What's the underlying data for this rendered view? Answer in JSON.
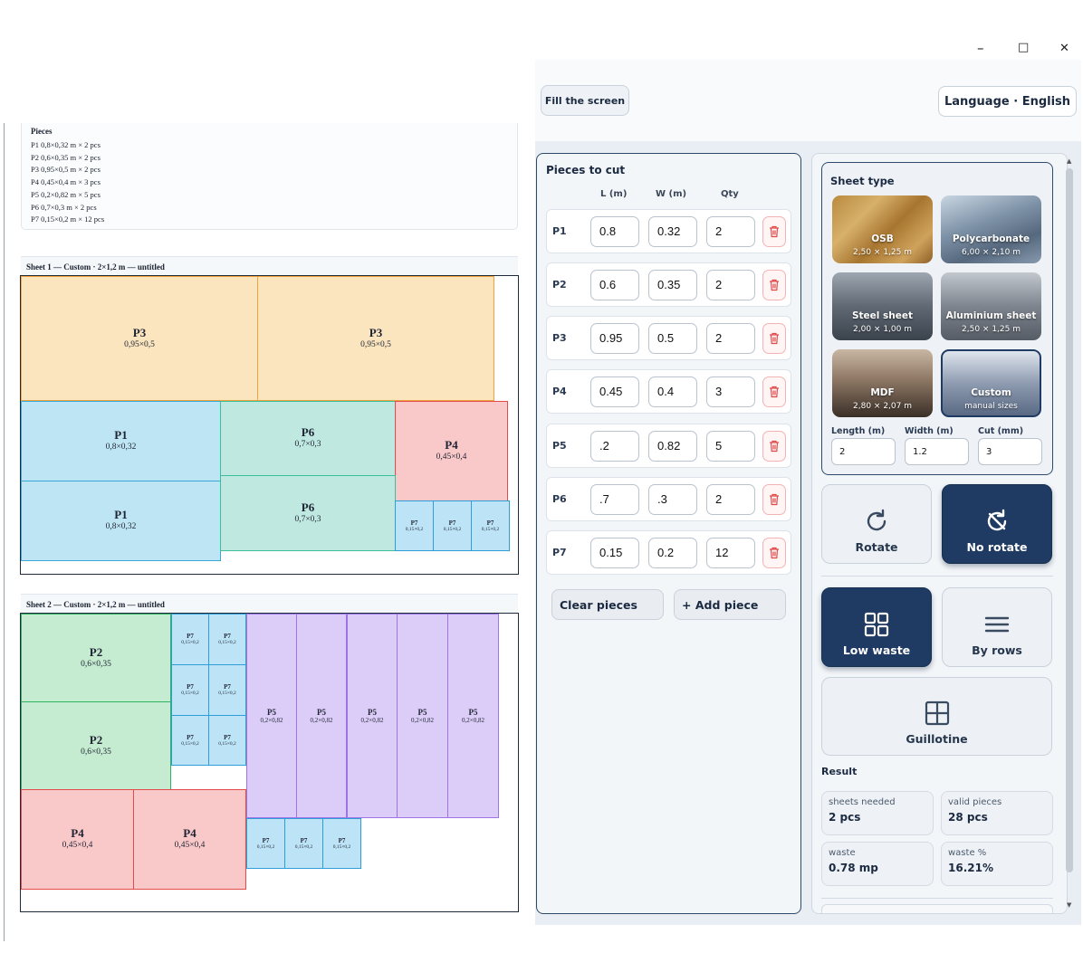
{
  "window": {
    "minimize_glyph": "–",
    "maximize_glyph": "□",
    "close_glyph": "✕"
  },
  "top_bar": {
    "fill_screen_label": "Fill the screen",
    "language_label": "Language · English"
  },
  "report": {
    "pieces_title": "Pieces",
    "pieces_lines": [
      "P1 0,8×0,32 m × 2 pcs",
      "P2 0,6×0,35 m × 2 pcs",
      "P3 0,95×0,5 m × 2 pcs",
      "P4 0,45×0,4 m × 3 pcs",
      "P5 0,2×0,82 m × 5 pcs",
      "P6 0,7×0,3 m × 2 pcs",
      "P7 0,15×0,2 m × 12 pcs"
    ],
    "sheets": [
      {
        "title": "Sheet 1 — Custom · 2×1,2 m — untitled",
        "pieces": [
          {
            "id": "P3",
            "dims": "0,95×0,5"
          },
          {
            "id": "P3",
            "dims": "0,95×0,5"
          },
          {
            "id": "P1",
            "dims": "0,8×0,32"
          },
          {
            "id": "P6",
            "dims": "0,7×0,3"
          },
          {
            "id": "P4",
            "dims": "0,45×0,4"
          },
          {
            "id": "P1",
            "dims": "0,8×0,32"
          },
          {
            "id": "P6",
            "dims": "0,7×0,3"
          },
          {
            "id": "P7",
            "dims": "0,15×0,2"
          },
          {
            "id": "P7",
            "dims": "0,15×0,2"
          },
          {
            "id": "P7",
            "dims": "0,15×0,2"
          }
        ]
      },
      {
        "title": "Sheet 2 — Custom · 2×1,2 m — untitled",
        "pieces": [
          {
            "id": "P2",
            "dims": "0,6×0,35"
          },
          {
            "id": "P2",
            "dims": "0,6×0,35"
          },
          {
            "id": "P7",
            "dims": "0,15×0,2"
          },
          {
            "id": "P7",
            "dims": "0,15×0,2"
          },
          {
            "id": "P7",
            "dims": "0,15×0,2"
          },
          {
            "id": "P7",
            "dims": "0,15×0,2"
          },
          {
            "id": "P7",
            "dims": "0,15×0,2"
          },
          {
            "id": "P7",
            "dims": "0,15×0,2"
          },
          {
            "id": "P5",
            "dims": "0,2×0,82"
          },
          {
            "id": "P5",
            "dims": "0,2×0,82"
          },
          {
            "id": "P5",
            "dims": "0,2×0,82"
          },
          {
            "id": "P5",
            "dims": "0,2×0,82"
          },
          {
            "id": "P5",
            "dims": "0,2×0,82"
          },
          {
            "id": "P4",
            "dims": "0,45×0,4"
          },
          {
            "id": "P4",
            "dims": "0,45×0,4"
          },
          {
            "id": "P7",
            "dims": "0,15×0,2"
          },
          {
            "id": "P7",
            "dims": "0,15×0,2"
          },
          {
            "id": "P7",
            "dims": "0,15×0,2"
          }
        ]
      }
    ]
  },
  "pieces_panel": {
    "title": "Pieces to cut",
    "columns": {
      "length": "L (m)",
      "width": "W (m)",
      "qty": "Qty"
    },
    "rows": [
      {
        "label": "P1",
        "length": "0.8",
        "width": "0.32",
        "qty": "2"
      },
      {
        "label": "P2",
        "length": "0.6",
        "width": "0.35",
        "qty": "2"
      },
      {
        "label": "P3",
        "length": "0.95",
        "width": "0.5",
        "qty": "2"
      },
      {
        "label": "P4",
        "length": "0.45",
        "width": "0.4",
        "qty": "3"
      },
      {
        "label": "P5",
        "length": ".2",
        "width": "0.82",
        "qty": "5"
      },
      {
        "label": "P6",
        "length": ".7",
        "width": ".3",
        "qty": "2"
      },
      {
        "label": "P7",
        "length": "0.15",
        "width": "0.2",
        "qty": "12"
      }
    ],
    "clear_label": "Clear pieces",
    "add_label": "+ Add piece",
    "delete_icon": "trash-icon"
  },
  "sheet_type": {
    "title": "Sheet type",
    "options": [
      {
        "name": "OSB",
        "size": "2,50 × 1,25 m"
      },
      {
        "name": "Polycarbonate",
        "size": "6,00 × 2,10 m"
      },
      {
        "name": "Steel sheet",
        "size": "2,00 × 1,00 m"
      },
      {
        "name": "Aluminium sheet",
        "size": "2,50 × 1,25 m"
      },
      {
        "name": "MDF",
        "size": "2,80 × 2,07 m"
      },
      {
        "name": "Custom",
        "size": "manual sizes"
      }
    ],
    "selected": "Custom",
    "length_label": "Length (m)",
    "length_value": "2",
    "width_label": "Width (m)",
    "width_value": "1.2",
    "cut_label": "Cut (mm)",
    "cut_value": "3"
  },
  "rotation": {
    "rotate_label": "Rotate",
    "no_rotate_label": "No rotate",
    "selected": "No rotate"
  },
  "strategy": {
    "low_waste_label": "Low waste",
    "by_rows_label": "By rows",
    "guillotine_label": "Guillotine",
    "selected": "Low waste"
  },
  "result": {
    "title": "Result",
    "sheets_needed_label": "sheets needed",
    "sheets_needed_value": "2 pcs",
    "valid_pieces_label": "valid pieces",
    "valid_pieces_value": "28 pcs",
    "waste_label": "waste",
    "waste_value": "0.78 mp",
    "waste_pct_label": "waste %",
    "waste_pct_value": "16.21%"
  },
  "colors": {
    "accent": "#1f3b63",
    "panel_border": "#2e4a6b",
    "danger": "#e04848"
  }
}
